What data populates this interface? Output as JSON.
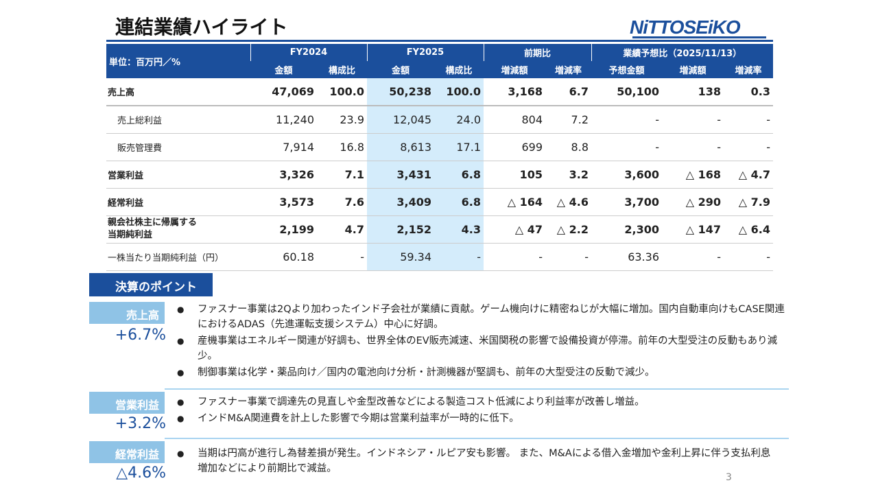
{
  "title": "連結業績ハイライト",
  "logo": "NiTTOSEiKO",
  "table": {
    "unit": "単位：百万円／%",
    "groups": [
      "FY2024",
      "FY2025",
      "前期比",
      "業績予想比（2025/11/13）"
    ],
    "subheaders": [
      "金額",
      "構成比",
      "金額",
      "構成比",
      "増減額",
      "増減率",
      "予想金額",
      "増減額",
      "増減率"
    ],
    "rows": [
      {
        "label": "売上高",
        "cells": [
          "47,069",
          "100.0",
          "50,238",
          "100.0",
          "3,168",
          "6.7",
          "50,100",
          "138",
          "0.3"
        ]
      },
      {
        "label": "売上総利益",
        "cells": [
          "11,240",
          "23.9",
          "12,045",
          "24.0",
          "804",
          "7.2",
          "-",
          "-",
          "-"
        ]
      },
      {
        "label": "販売管理費",
        "cells": [
          "7,914",
          "16.8",
          "8,613",
          "17.1",
          "699",
          "8.8",
          "-",
          "-",
          "-"
        ]
      },
      {
        "label": "営業利益",
        "cells": [
          "3,326",
          "7.1",
          "3,431",
          "6.8",
          "105",
          "3.2",
          "3,600",
          "△ 168",
          "△ 4.7"
        ]
      },
      {
        "label": "経常利益",
        "cells": [
          "3,573",
          "7.6",
          "3,409",
          "6.8",
          "△ 164",
          "△ 4.6",
          "3,700",
          "△ 290",
          "△ 7.9"
        ]
      },
      {
        "label": "親会社株主に帰属する当期純利益",
        "label1": "親会社株主に帰属する",
        "label2": "当期純利益",
        "cells": [
          "2,199",
          "4.7",
          "2,152",
          "4.3",
          "△ 47",
          "△ 2.2",
          "2,300",
          "△ 147",
          "△ 6.4"
        ]
      },
      {
        "label": "一株当たり当期純利益（円）",
        "cells": [
          "60.18",
          "-",
          "59.34",
          "-",
          "-",
          "-",
          "63.36",
          "-",
          "-"
        ]
      }
    ]
  },
  "points": {
    "title": "決算のポイント",
    "sections": [
      {
        "label": "売上高",
        "value": "+6.7%",
        "bullets": [
          "ファスナー事業は2Qより加わったインド子会社が業績に貢献。ゲーム機向けに精密ねじが大幅に増加。国内自動車向けもCASE関連におけるADAS（先進運転支援システム）中心に好調。",
          "産機事業はエネルギー関連が好調も、世界全体のEV販売減速、米国関税の影響で設備投資が停滞。前年の大型受注の反動もあり減少。",
          "制御事業は化学・薬品向け／国内の電池向け分析・計測機器が堅調も、前年の大型受注の反動で減少。"
        ]
      },
      {
        "label": "営業利益",
        "value": "+3.2%",
        "bullets": [
          "ファスナー事業で調達先の見直しや金型改善などによる製造コスト低減により利益率が改善し増益。",
          "インドM&A関連費を計上した影響で今期は営業利益率が一時的に低下。"
        ]
      },
      {
        "label": "経常利益",
        "value": "△4.6%",
        "bullets": [
          "当期は円高が進行し為替差損が発生。インドネシア・ルピア安も影響。 また、M&Aによる借入金増加や金利上昇に伴う支払利息増加などにより前期比で減益。"
        ]
      }
    ]
  },
  "page_number": "3",
  "colors": {
    "brand": "#1b4f9c",
    "highlight": "#d4ecfb",
    "label_bg": "#8fc3e6"
  }
}
